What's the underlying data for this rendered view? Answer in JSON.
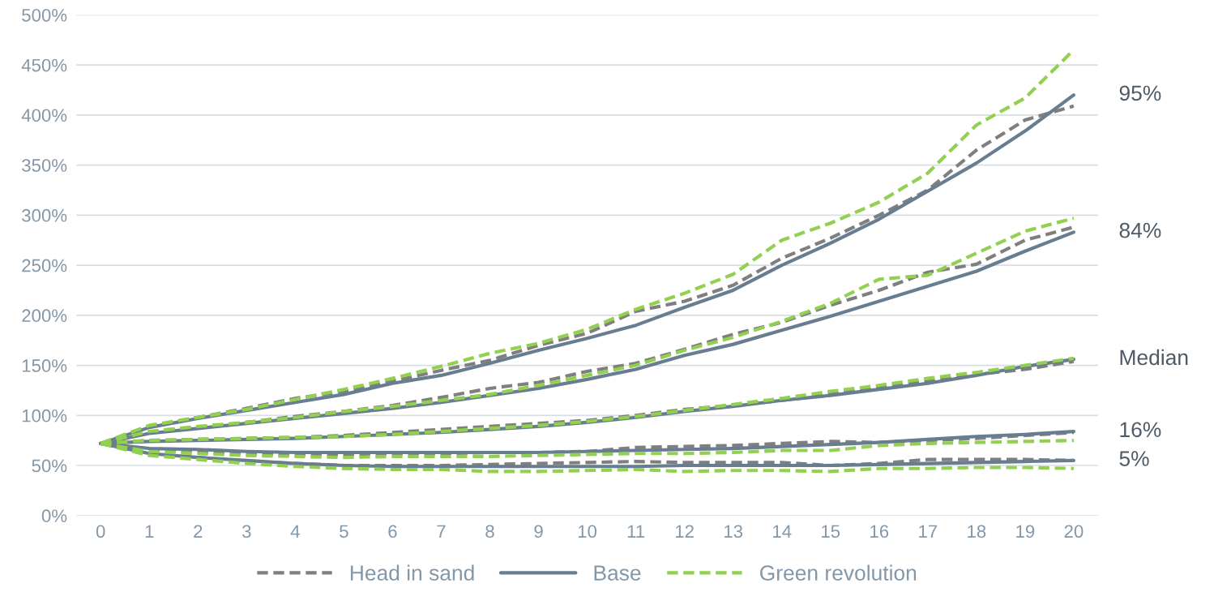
{
  "chart_data": {
    "type": "line",
    "categories": [
      "0",
      "1",
      "2",
      "3",
      "4",
      "5",
      "6",
      "7",
      "8",
      "9",
      "10",
      "11",
      "12",
      "13",
      "14",
      "15",
      "16",
      "17",
      "18",
      "19",
      "20"
    ],
    "ylim": [
      0,
      500
    ],
    "yticks": [
      {
        "value": 0,
        "label": "0%"
      },
      {
        "value": 50,
        "label": "50%"
      },
      {
        "value": 100,
        "label": "100%"
      },
      {
        "value": 150,
        "label": "150%"
      },
      {
        "value": 200,
        "label": "200%"
      },
      {
        "value": 250,
        "label": "250%"
      },
      {
        "value": 300,
        "label": "300%"
      },
      {
        "value": 350,
        "label": "350%"
      },
      {
        "value": 400,
        "label": "400%"
      },
      {
        "value": 450,
        "label": "450%"
      },
      {
        "value": 500,
        "label": "500%"
      }
    ],
    "grid": "y",
    "legend": "bottom",
    "marker": "none",
    "series": [
      {
        "name": "Head in sand",
        "color": "#7f7f7f",
        "line_style": "dashed",
        "values": [
          72,
          89,
          98,
          107,
          117,
          124,
          134,
          145,
          155,
          170,
          182,
          204,
          214,
          230,
          257,
          277,
          300,
          325,
          365,
          395,
          409
        ]
      },
      {
        "color": "#7f7f7f",
        "line_style": "dashed",
        "values": [
          72,
          83,
          88,
          93,
          99,
          104,
          110,
          118,
          127,
          133,
          144,
          152,
          166,
          181,
          193,
          210,
          225,
          243,
          251,
          275,
          288
        ]
      },
      {
        "color": "#7f7f7f",
        "line_style": "dashed",
        "values": [
          72,
          75,
          76,
          77,
          78,
          80,
          83,
          86,
          89,
          92,
          95,
          100,
          106,
          110,
          115,
          121,
          128,
          134,
          141,
          146,
          154
        ]
      },
      {
        "color": "#7f7f7f",
        "line_style": "dashed",
        "values": [
          72,
          66,
          64,
          62,
          61,
          61,
          62,
          62,
          63,
          63,
          64,
          68,
          69,
          70,
          72,
          74,
          73,
          75,
          77,
          80,
          83
        ]
      },
      {
        "color": "#7f7f7f",
        "line_style": "dashed",
        "values": [
          72,
          62,
          58,
          54,
          52,
          50,
          50,
          50,
          51,
          52,
          53,
          54,
          53,
          53,
          53,
          50,
          52,
          56,
          56,
          56,
          55
        ]
      },
      {
        "name": "Base",
        "color": "#687d8f",
        "line_style": "solid",
        "values": [
          72,
          88,
          97,
          105,
          113,
          121,
          132,
          140,
          152,
          165,
          177,
          190,
          208,
          225,
          250,
          272,
          296,
          324,
          352,
          384,
          420
        ]
      },
      {
        "color": "#687d8f",
        "line_style": "solid",
        "values": [
          72,
          82,
          87,
          92,
          97,
          102,
          107,
          113,
          120,
          127,
          136,
          146,
          160,
          171,
          185,
          199,
          214,
          229,
          244,
          264,
          283
        ]
      },
      {
        "color": "#687d8f",
        "line_style": "solid",
        "values": [
          72,
          74,
          75,
          76,
          77,
          79,
          81,
          83,
          86,
          89,
          93,
          98,
          104,
          109,
          115,
          120,
          126,
          132,
          140,
          149,
          156
        ]
      },
      {
        "color": "#687d8f",
        "line_style": "solid",
        "values": [
          72,
          67,
          66,
          64,
          63,
          63,
          63,
          63,
          63,
          63,
          64,
          65,
          66,
          67,
          69,
          71,
          73,
          76,
          79,
          81,
          84
        ]
      },
      {
        "color": "#687d8f",
        "line_style": "solid",
        "values": [
          72,
          62,
          58,
          55,
          52,
          50,
          49,
          49,
          49,
          49,
          49,
          49,
          50,
          50,
          50,
          50,
          51,
          52,
          53,
          54,
          55
        ]
      },
      {
        "name": "Green revolution",
        "color": "#92d050",
        "line_style": "dashed",
        "values": [
          72,
          90,
          98,
          106,
          116,
          126,
          137,
          149,
          162,
          172,
          186,
          206,
          222,
          241,
          275,
          292,
          313,
          342,
          390,
          417,
          465
        ]
      },
      {
        "color": "#92d050",
        "line_style": "dashed",
        "values": [
          72,
          84,
          89,
          93,
          98,
          104,
          109,
          115,
          121,
          130,
          140,
          150,
          165,
          178,
          194,
          212,
          236,
          240,
          262,
          284,
          297
        ]
      },
      {
        "color": "#92d050",
        "line_style": "dashed",
        "values": [
          72,
          75,
          76,
          77,
          78,
          79,
          81,
          84,
          87,
          90,
          94,
          99,
          105,
          111,
          117,
          124,
          130,
          137,
          143,
          150,
          157
        ]
      },
      {
        "color": "#92d050",
        "line_style": "dashed",
        "values": [
          72,
          64,
          62,
          60,
          59,
          58,
          59,
          59,
          59,
          60,
          61,
          62,
          62,
          63,
          65,
          65,
          70,
          72,
          73,
          74,
          75
        ]
      },
      {
        "color": "#92d050",
        "line_style": "dashed",
        "values": [
          72,
          60,
          56,
          52,
          49,
          47,
          46,
          46,
          44,
          44,
          45,
          46,
          44,
          45,
          45,
          44,
          47,
          47,
          48,
          48,
          47
        ]
      }
    ],
    "annotations": [
      "95%",
      "84%",
      "Median",
      "16%",
      "5%"
    ]
  }
}
